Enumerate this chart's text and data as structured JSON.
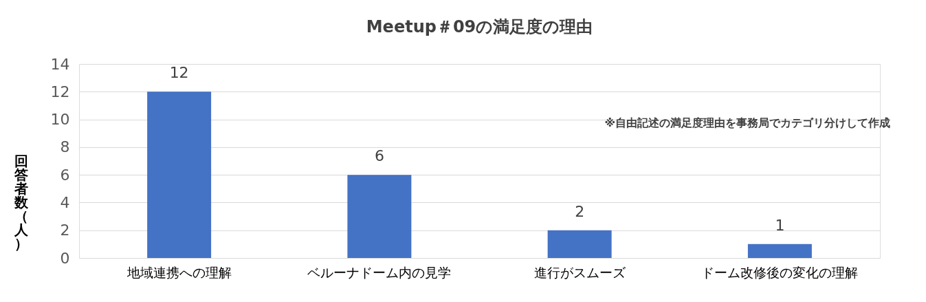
{
  "chart_data": {
    "type": "bar",
    "title": "Meetup＃09の満足度の理由",
    "ylabel": "回答者数（人）",
    "categories": [
      "地域連携への理解",
      "ベルーナドーム内の見学",
      "進行がスムーズ",
      "ドーム改修後の変化の理解"
    ],
    "series": [
      {
        "color": "#4472c4",
        "values": [
          12,
          6,
          2,
          1
        ]
      }
    ],
    "ylim": [
      0,
      14
    ],
    "yticks": [
      0,
      2,
      4,
      6,
      8,
      10,
      12,
      14
    ],
    "grid": "y",
    "data_labels": true,
    "annotations": [
      "※自由記述の満足度理由を事務局でカテゴリ分けして作成"
    ]
  }
}
